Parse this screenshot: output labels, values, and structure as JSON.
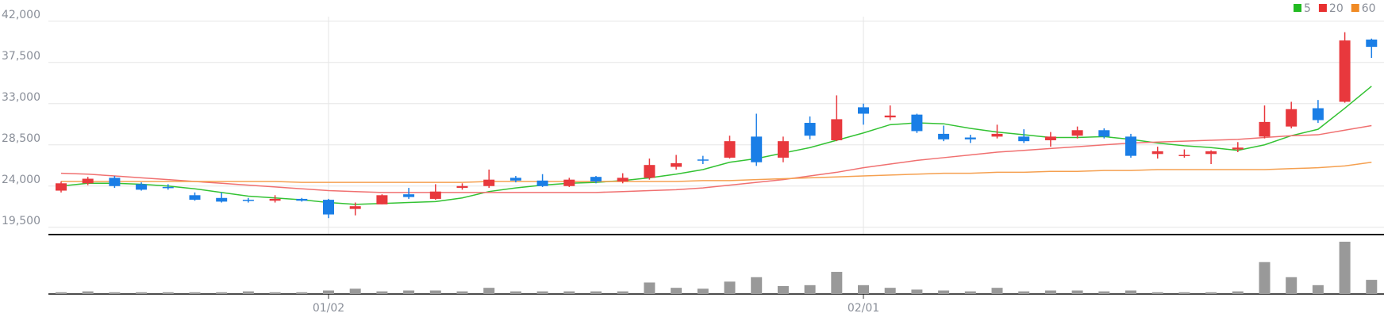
{
  "chart_data": {
    "type": "candlestick",
    "categories": [
      null,
      null,
      null,
      null,
      null,
      null,
      null,
      null,
      null,
      null,
      "01/02",
      null,
      null,
      null,
      null,
      null,
      null,
      null,
      null,
      null,
      null,
      null,
      null,
      null,
      null,
      null,
      null,
      null,
      null,
      null,
      "02/01",
      null,
      null,
      null,
      null,
      null,
      null,
      null,
      null,
      null,
      null,
      null,
      null,
      null,
      null,
      null,
      null,
      null,
      null,
      null
    ],
    "open": [
      23500,
      24300,
      24900,
      24200,
      23900,
      23000,
      22700,
      22500,
      22400,
      22600,
      22500,
      21500,
      22000,
      23100,
      22600,
      23800,
      24000,
      24900,
      24600,
      24000,
      25000,
      24500,
      24900,
      26100,
      26900,
      27100,
      29400,
      27100,
      30900,
      29000,
      32600,
      31500,
      31800,
      29700,
      29300,
      29400,
      29400,
      29000,
      29500,
      30100,
      29400,
      27500,
      27300,
      27500,
      28000,
      29400,
      30500,
      32500,
      33200,
      40000
    ],
    "high": [
      24500,
      25000,
      25100,
      24400,
      24200,
      23300,
      23300,
      22700,
      23000,
      22700,
      22600,
      22200,
      23100,
      23800,
      24200,
      24300,
      25800,
      25100,
      25300,
      24900,
      25100,
      25400,
      27000,
      27400,
      27300,
      29500,
      31900,
      29400,
      31600,
      33900,
      33000,
      32800,
      31900,
      30600,
      29600,
      30700,
      30200,
      29900,
      30500,
      30300,
      29700,
      28300,
      28000,
      27900,
      28800,
      32800,
      33200,
      33400,
      40800,
      40100
    ],
    "low": [
      23300,
      24100,
      23800,
      23500,
      23600,
      22400,
      22200,
      22200,
      22200,
      22300,
      20500,
      20800,
      22000,
      22600,
      22500,
      23600,
      23800,
      24400,
      23900,
      23900,
      24300,
      24300,
      24700,
      25800,
      26400,
      27000,
      26200,
      26600,
      29100,
      28900,
      30700,
      31200,
      29800,
      28900,
      28700,
      29200,
      28700,
      28300,
      29200,
      29200,
      27100,
      27000,
      27100,
      26400,
      27700,
      29200,
      30300,
      30900,
      33100,
      38000
    ],
    "close": [
      24300,
      24800,
      24000,
      23600,
      23800,
      22500,
      22300,
      22400,
      22600,
      22400,
      20900,
      21800,
      23000,
      22800,
      23400,
      24000,
      24700,
      24600,
      24000,
      24700,
      24500,
      24900,
      26300,
      26500,
      26800,
      28900,
      26600,
      28900,
      29500,
      31300,
      31900,
      31700,
      30000,
      29100,
      29100,
      29700,
      28900,
      29400,
      30100,
      29400,
      27300,
      27800,
      27400,
      27800,
      28200,
      31000,
      32400,
      31200,
      39900,
      39200
    ],
    "volume": [
      2,
      3,
      2,
      2,
      2,
      2,
      2,
      3,
      2,
      2,
      4,
      6,
      3,
      4,
      4,
      3,
      7,
      3,
      3,
      3,
      3,
      3,
      13,
      7,
      6,
      14,
      19,
      9,
      10,
      25,
      10,
      7,
      5,
      4,
      3,
      7,
      3,
      4,
      4,
      3,
      4,
      2,
      2,
      2,
      3,
      36,
      19,
      10,
      59,
      16
    ],
    "up_color": "#e8383d",
    "down_color": "#1a7ee6",
    "volume_color": "#999999",
    "ma": [
      {
        "name": "5",
        "color": "#33c233",
        "values": [
          24000,
          24300,
          24300,
          24200,
          24000,
          23700,
          23300,
          22900,
          22700,
          22500,
          22200,
          22000,
          22100,
          22200,
          22300,
          22700,
          23400,
          23800,
          24100,
          24300,
          24400,
          24600,
          24900,
          25300,
          25800,
          26600,
          27000,
          27600,
          28200,
          29000,
          29800,
          30700,
          30900,
          30800,
          30300,
          29900,
          29600,
          29300,
          29300,
          29400,
          29100,
          28700,
          28400,
          28200,
          27900,
          28500,
          29500,
          30200,
          32500,
          34900
        ]
      },
      {
        "name": "20",
        "color": "#f07070",
        "values": [
          25400,
          25300,
          25100,
          24900,
          24700,
          24500,
          24300,
          24100,
          23900,
          23700,
          23500,
          23400,
          23300,
          23300,
          23300,
          23300,
          23300,
          23300,
          23300,
          23300,
          23300,
          23400,
          23500,
          23600,
          23800,
          24100,
          24400,
          24700,
          25100,
          25500,
          26000,
          26400,
          26800,
          27100,
          27400,
          27700,
          27900,
          28100,
          28300,
          28500,
          28700,
          28800,
          28900,
          29000,
          29100,
          29300,
          29500,
          29600,
          30100,
          30600
        ]
      },
      {
        "name": "60",
        "color": "#f5a050",
        "values": [
          24500,
          24500,
          24500,
          24500,
          24500,
          24500,
          24500,
          24500,
          24500,
          24400,
          24400,
          24400,
          24400,
          24400,
          24400,
          24400,
          24500,
          24500,
          24500,
          24500,
          24500,
          24500,
          24500,
          24500,
          24600,
          24600,
          24700,
          24800,
          24900,
          25000,
          25100,
          25200,
          25300,
          25400,
          25400,
          25500,
          25500,
          25600,
          25600,
          25700,
          25700,
          25800,
          25800,
          25800,
          25800,
          25800,
          25900,
          26000,
          26200,
          26600
        ]
      }
    ],
    "legend_colors": [
      "#22bb22",
      "#e83030",
      "#f08a24"
    ],
    "ylim": [
      18700,
      42500
    ],
    "yticks": [
      {
        "value": 19500,
        "label": "19,500"
      },
      {
        "value": 24000,
        "label": "24,000"
      },
      {
        "value": 28500,
        "label": "28,500"
      },
      {
        "value": 33000,
        "label": "33,000"
      },
      {
        "value": 37500,
        "label": "37,500"
      },
      {
        "value": 42000,
        "label": "42,000"
      }
    ],
    "grid": true
  }
}
